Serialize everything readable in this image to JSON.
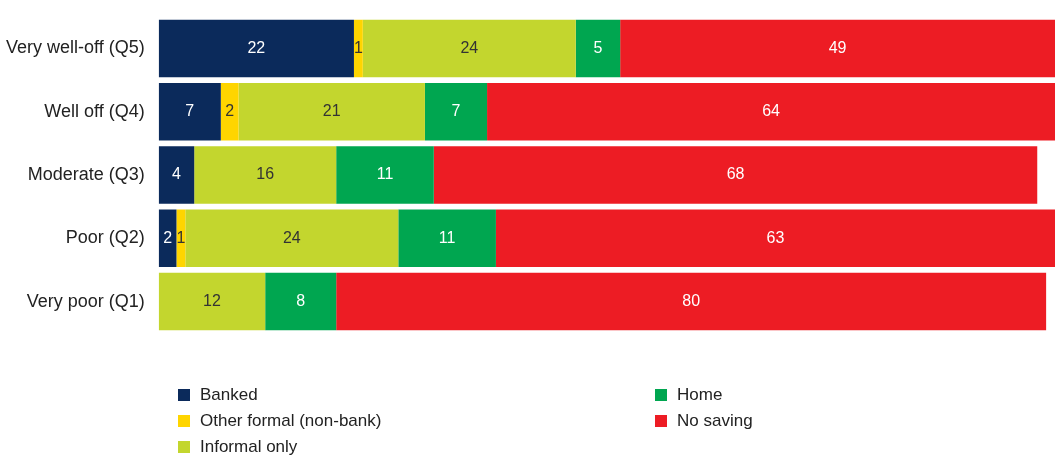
{
  "chart_data": {
    "type": "bar",
    "orientation": "horizontal",
    "stacked": true,
    "data_labels": true,
    "legend": "bottom",
    "tick_labels": "y",
    "xlim": [
      0,
      101
    ],
    "categories": [
      "Very well-off (Q5)",
      "Well off (Q4)",
      "Moderate (Q3)",
      "Poor (Q2)",
      "Very poor (Q1)"
    ],
    "series": [
      {
        "name": "Banked",
        "color": "#0b2a5b",
        "values": [
          22,
          7,
          4,
          2,
          null
        ]
      },
      {
        "name": "Other formal (non-bank)",
        "color": "#ffd500",
        "values": [
          1,
          2,
          null,
          1,
          null
        ]
      },
      {
        "name": "Informal only",
        "color": "#c3d62e",
        "values": [
          24,
          21,
          16,
          24,
          12
        ]
      },
      {
        "name": "Home",
        "color": "#00a650",
        "values": [
          5,
          7,
          11,
          11,
          8
        ]
      },
      {
        "name": "No saving",
        "color": "#ed1c24",
        "values": [
          49,
          64,
          68,
          63,
          80
        ]
      }
    ]
  }
}
